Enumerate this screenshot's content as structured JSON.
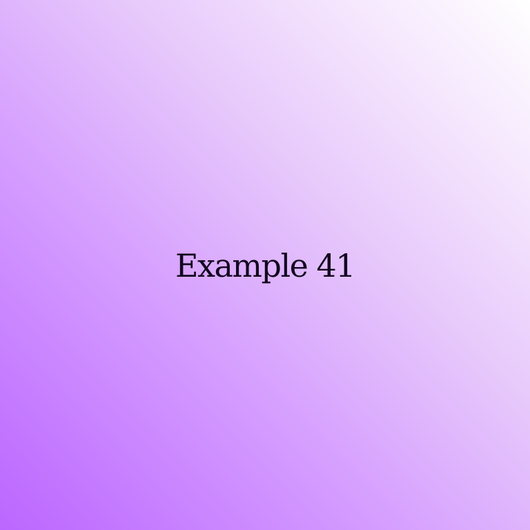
{
  "title": "Example 41",
  "colors": {
    "gradient_bottom_left": "#bb66ff",
    "gradient_top_right": "#ffffff",
    "text": "#12071f"
  }
}
